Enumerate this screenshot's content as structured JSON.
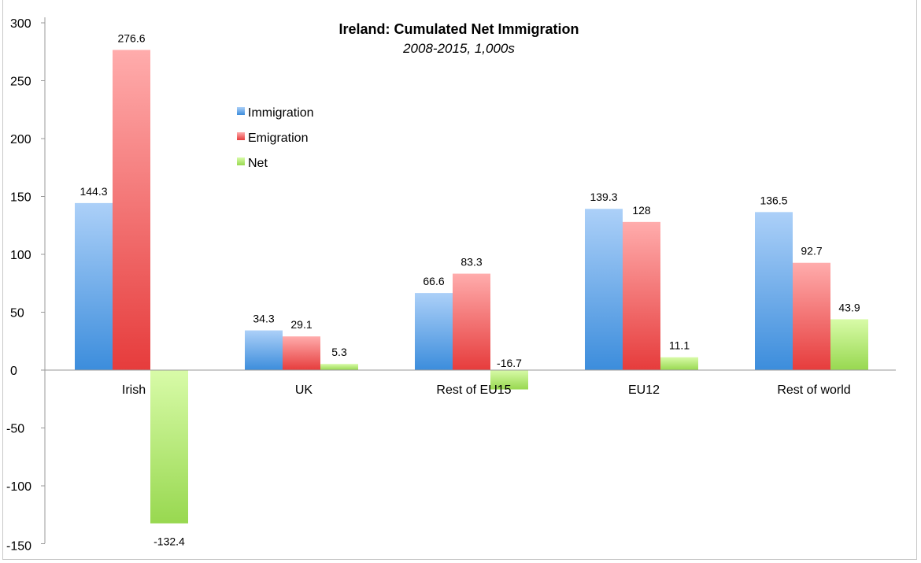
{
  "chart_data": {
    "type": "bar",
    "title": "Ireland: Cumulated Net Immigration",
    "subtitle": "2008-2015, 1,000s",
    "xlabel": "",
    "ylabel": "",
    "ylim": [
      -150,
      300
    ],
    "yticks": [
      300,
      250,
      200,
      150,
      100,
      50,
      0,
      -50,
      -100,
      -150
    ],
    "categories": [
      "Irish",
      "UK",
      "Rest of EU15",
      "EU12",
      "Rest of world"
    ],
    "series": [
      {
        "name": "Immigration",
        "values": [
          144.3,
          34.3,
          66.6,
          139.3,
          136.5
        ],
        "color": "#5c9ee8"
      },
      {
        "name": "Emigration",
        "values": [
          276.6,
          29.1,
          83.3,
          128,
          92.7
        ],
        "color": "#f05a5a"
      },
      {
        "name": "Net",
        "values": [
          -132.4,
          5.3,
          -16.7,
          11.1,
          43.9
        ],
        "color": "#a8e060"
      }
    ],
    "legend_position": "top-left (inside plot)",
    "grid": false
  }
}
